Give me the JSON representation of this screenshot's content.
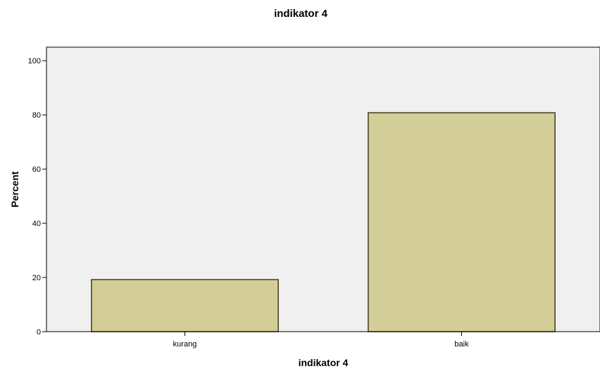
{
  "chart_data": {
    "type": "bar",
    "title": "indikator 4",
    "xlabel": "indikator 4",
    "ylabel": "Percent",
    "categories": [
      "kurang",
      "baik"
    ],
    "values": [
      19.2,
      80.8
    ],
    "ylim": [
      0,
      105
    ],
    "yticks": [
      0,
      20,
      40,
      60,
      80,
      100
    ],
    "yticklabels": [
      "0",
      "20",
      "40",
      "60",
      "80",
      "100"
    ],
    "grid": false,
    "legend": "none",
    "colors": {
      "plot_background": "#f0f0f0",
      "bar_fill": "#d3ce97",
      "bar_stroke": "#3d3a1e",
      "axis": "#000000"
    }
  }
}
